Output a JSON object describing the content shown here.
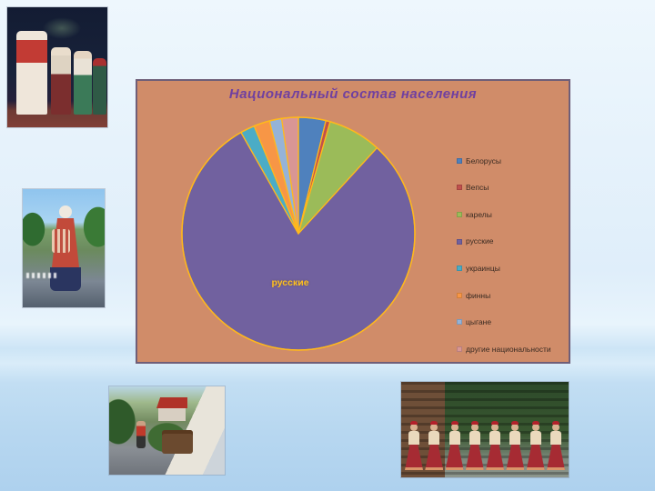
{
  "chart": {
    "title": "Национальный состав населения",
    "inner_label": "русские",
    "colors": {
      "area_bg": "#d08c69",
      "border": "#6f5e78",
      "title_text": "#7040a0",
      "legend_text": "#3a2b22",
      "slice_outline": "#ffb81c",
      "inner_label_text": "#ffc020"
    }
  },
  "chart_data": {
    "type": "pie",
    "title": "Национальный состав населения",
    "labels": [
      "Белорусы",
      "Вепсы",
      "карелы",
      "русские",
      "украинцы",
      "финны",
      "цыгане",
      "другие национальности"
    ],
    "values": [
      3.8,
      0.6,
      7.4,
      80.0,
      2.0,
      2.2,
      1.7,
      2.3
    ],
    "colors": [
      "#4f81bd",
      "#c0504d",
      "#9bbb59",
      "#71619f",
      "#4bacc6",
      "#f79646",
      "#95b3d7",
      "#d99694"
    ],
    "legend_position": "right",
    "start_angle_deg": 0,
    "direction": "clockwise",
    "data_labels": [
      {
        "slice": "русские",
        "text": "русские"
      }
    ]
  }
}
